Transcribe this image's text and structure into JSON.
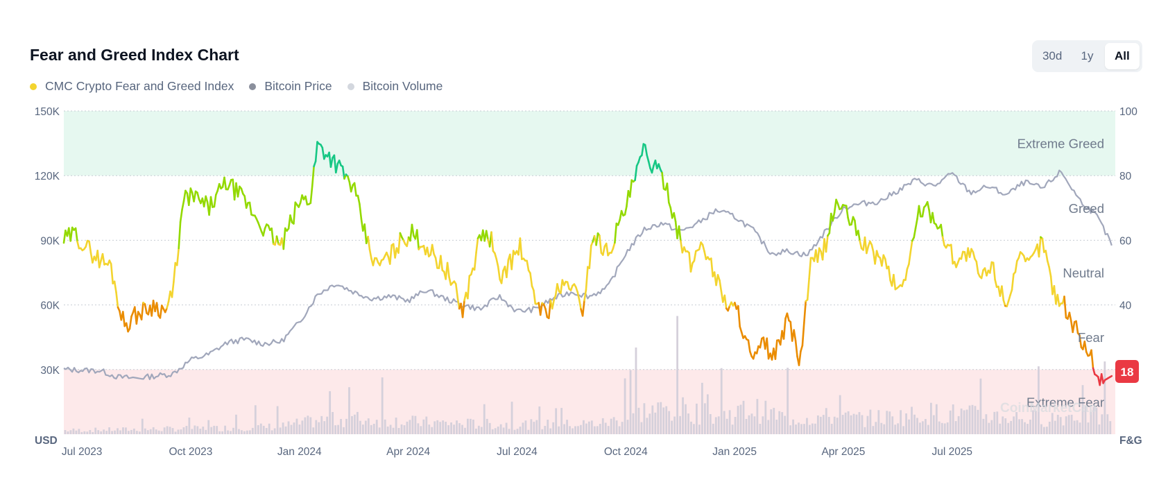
{
  "header": {
    "title": "Fear and Greed Index Chart",
    "range_buttons": [
      "30d",
      "1y",
      "All"
    ],
    "active_range": "All"
  },
  "legend": [
    {
      "label": "CMC Crypto Fear and Greed Index",
      "color": "#f3d42f"
    },
    {
      "label": "Bitcoin Price",
      "color": "#8a8f9c"
    },
    {
      "label": "Bitcoin Volume",
      "color": "#d3d7de"
    }
  ],
  "current_badge": {
    "value": "18",
    "color": "#ea3943"
  },
  "watermark": "CoinMarketCap",
  "chart_data": {
    "type": "line",
    "title": "Fear and Greed Index Chart",
    "left_axis": {
      "label": "USD",
      "ticks": [
        "150K",
        "120K",
        "90K",
        "60K",
        "30K"
      ],
      "tick_values": [
        150000,
        120000,
        90000,
        60000,
        30000
      ],
      "range": [
        0,
        150000
      ]
    },
    "right_axis": {
      "label": "F&G",
      "ticks": [
        "100",
        "80",
        "60",
        "40"
      ],
      "tick_values": [
        100,
        80,
        60,
        40
      ],
      "range": [
        0,
        100
      ]
    },
    "x_ticks": [
      "Jul 2023",
      "Oct 2023",
      "Jan 2024",
      "Apr 2024",
      "Jul 2024",
      "Oct 2024",
      "Jan 2025",
      "Apr 2025",
      "Jul 2025"
    ],
    "x_tick_positions": [
      0.5,
      3.5,
      6.5,
      9.5,
      12.5,
      15.5,
      18.5,
      21.5,
      24.5
    ],
    "x_range": [
      0,
      29
    ],
    "zones": [
      {
        "label": "Extreme Greed",
        "from": 80,
        "to": 100,
        "color": "#e6f8f0"
      },
      {
        "label": "Greed",
        "from": 60,
        "to": 80,
        "color": "none"
      },
      {
        "label": "Neutral",
        "from": 40,
        "to": 60,
        "color": "none"
      },
      {
        "label": "Fear",
        "from": 20,
        "to": 40,
        "color": "none"
      },
      {
        "label": "Extreme Fear",
        "from": 0,
        "to": 20,
        "color": "#fde9ea"
      }
    ],
    "series": [
      {
        "name": "CMC Crypto Fear and Greed Index",
        "axis": "right",
        "x": [
          0,
          0.3,
          0.6,
          1.0,
          1.3,
          1.6,
          1.7,
          2.0,
          2.5,
          2.8,
          3.0,
          3.3,
          3.5,
          4.0,
          4.5,
          5.0,
          5.5,
          6.0,
          6.5,
          6.8,
          7.0,
          7.5,
          8.0,
          8.3,
          8.6,
          9.0,
          9.3,
          9.6,
          10.0,
          10.3,
          10.6,
          11.0,
          11.5,
          11.8,
          12.0,
          12.3,
          12.6,
          13.0,
          13.3,
          13.6,
          14.0,
          14.3,
          14.6,
          15.0,
          15.5,
          16.0,
          16.3,
          16.6,
          17.0,
          17.3,
          17.6,
          18.0,
          18.3,
          18.6,
          19.0,
          19.3,
          19.6,
          20.0,
          20.3,
          20.6,
          21.0,
          21.3,
          21.6,
          22.0,
          22.3,
          22.6,
          23.0,
          23.3,
          23.6,
          24.0,
          24.3,
          24.6,
          25.0,
          25.3,
          25.6,
          26.0,
          26.3,
          26.6,
          27.0,
          27.3,
          27.6,
          28.0,
          28.3,
          28.6,
          28.9
        ],
        "values": [
          60,
          62,
          58,
          54,
          52,
          36,
          34,
          37,
          40,
          38,
          43,
          72,
          74,
          70,
          78,
          72,
          64,
          58,
          72,
          73,
          90,
          84,
          76,
          62,
          52,
          55,
          60,
          62,
          58,
          54,
          50,
          38,
          62,
          60,
          48,
          53,
          58,
          42,
          37,
          44,
          47,
          38,
          62,
          56,
          70,
          88,
          82,
          78,
          60,
          52,
          60,
          48,
          40,
          38,
          22,
          28,
          24,
          36,
          22,
          52,
          58,
          72,
          68,
          60,
          56,
          54,
          44,
          52,
          70,
          68,
          60,
          54,
          56,
          48,
          52,
          40,
          54,
          52,
          60,
          44,
          40,
          30,
          25,
          16,
          18
        ],
        "colors_by_zone": {
          "extreme_greed": "#16c784",
          "greed": "#93d900",
          "neutral": "#f3d42f",
          "fear": "#ea8c00",
          "extreme_fear": "#ea3943"
        }
      },
      {
        "name": "Bitcoin Price",
        "axis": "left",
        "color": "#a1a7bb",
        "x": [
          0,
          1.0,
          1.5,
          2.0,
          2.5,
          3.0,
          3.5,
          4.0,
          4.5,
          5.0,
          5.5,
          6.0,
          6.5,
          7.0,
          7.5,
          8.0,
          8.5,
          9.0,
          9.5,
          10.0,
          10.5,
          11.0,
          11.5,
          12.0,
          12.5,
          13.0,
          13.5,
          14.0,
          14.5,
          15.0,
          15.5,
          16.0,
          16.5,
          17.0,
          17.5,
          18.0,
          18.5,
          19.0,
          19.5,
          20.0,
          20.5,
          21.0,
          21.5,
          22.0,
          22.5,
          23.0,
          23.5,
          24.0,
          24.5,
          25.0,
          25.5,
          26.0,
          26.5,
          27.0,
          27.5,
          28.0,
          28.5,
          28.9
        ],
        "values": [
          30000,
          29500,
          26500,
          26000,
          27000,
          28000,
          34500,
          37000,
          42500,
          44000,
          42000,
          43000,
          52000,
          65000,
          70000,
          66000,
          63000,
          64000,
          62000,
          67000,
          63000,
          60000,
          58000,
          64000,
          57000,
          58000,
          63000,
          66000,
          64000,
          68000,
          84000,
          95000,
          98000,
          94000,
          98000,
          104000,
          101000,
          95000,
          84000,
          85000,
          83000,
          94000,
          105000,
          107000,
          108000,
          113000,
          118000,
          115000,
          121000,
          112000,
          115000,
          111000,
          117000,
          114000,
          122000,
          109000,
          101000,
          88000
        ]
      },
      {
        "name": "Bitcoin Volume",
        "axis": "left",
        "color": "#d5d0db",
        "note": "relative daily volume bars",
        "x": [
          0,
          2,
          4,
          6,
          7,
          8,
          10,
          12,
          14,
          15,
          16,
          17,
          18,
          19,
          20,
          21,
          22,
          23,
          24,
          25,
          26,
          27,
          28,
          28.9
        ],
        "values": [
          2000,
          2500,
          3000,
          4000,
          7000,
          8000,
          6000,
          5000,
          5000,
          6000,
          12000,
          13000,
          9000,
          13000,
          8000,
          9000,
          8000,
          9000,
          11000,
          10000,
          9000,
          8000,
          10000,
          8000
        ]
      }
    ],
    "current_value": 18
  }
}
